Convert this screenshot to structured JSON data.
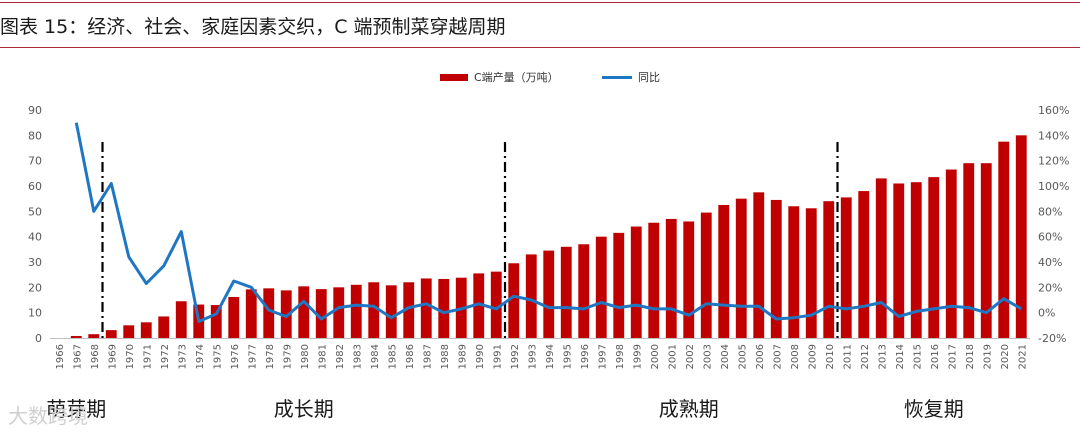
{
  "header": {
    "title": "图表 15：经济、社会、家庭因素交织，C 端预制菜穿越周期"
  },
  "watermark": "大数跨境",
  "colors": {
    "bar": "#c00000",
    "line": "#1f77c4",
    "divider": "#000000",
    "axis_text": "#595959",
    "title_rule": "#b0283a"
  },
  "chart_data": {
    "type": "bar",
    "categories": [
      "1966",
      "1967",
      "1968",
      "1969",
      "1970",
      "1971",
      "1972",
      "1973",
      "1974",
      "1975",
      "1976",
      "1977",
      "1978",
      "1979",
      "1980",
      "1981",
      "1982",
      "1983",
      "1984",
      "1985",
      "1986",
      "1987",
      "1988",
      "1989",
      "1990",
      "1991",
      "1992",
      "1993",
      "1994",
      "1995",
      "1996",
      "1997",
      "1998",
      "1999",
      "2000",
      "2001",
      "2002",
      "2003",
      "2004",
      "2005",
      "2006",
      "2007",
      "2008",
      "2009",
      "2010",
      "2011",
      "2012",
      "2013",
      "2014",
      "2015",
      "2016",
      "2017",
      "2018",
      "2019",
      "2020",
      "2021"
    ],
    "series": [
      {
        "name": "C端产量（万吨）",
        "type": "bar",
        "axis": "left",
        "values": [
          0,
          0.8,
          1.5,
          3.1,
          5,
          6.2,
          8.5,
          14.5,
          13.2,
          13,
          16.2,
          19.2,
          19.6,
          18.8,
          20.4,
          19.3,
          20,
          21,
          22,
          20.8,
          22,
          23.5,
          23.3,
          23.8,
          25.5,
          26.2,
          29.5,
          33,
          34.5,
          36,
          37,
          40,
          41.5,
          44,
          45.5,
          47,
          46,
          49.5,
          52.5,
          55,
          57.5,
          54.5,
          52,
          51.2,
          54,
          55.5,
          58,
          63,
          61,
          61.5,
          63.5,
          66.5,
          69,
          69,
          77.5,
          80
        ]
      },
      {
        "name": "同比",
        "type": "line",
        "axis": "right",
        "values": [
          null,
          150,
          80,
          102,
          44,
          23,
          37,
          64,
          -7,
          -1,
          25,
          20,
          2,
          -3,
          9,
          -5,
          4,
          6,
          5,
          -4,
          4,
          7,
          0,
          3,
          7,
          3,
          13,
          10,
          4,
          4,
          3,
          8,
          4,
          6,
          3,
          3,
          -2,
          7,
          6,
          5,
          5,
          -5,
          -4,
          -2,
          5,
          3,
          5,
          8,
          -3,
          1,
          3,
          5,
          4,
          0,
          11,
          3
        ]
      }
    ],
    "ylim": [
      0,
      90
    ],
    "y_ticks": [
      "0",
      "10",
      "20",
      "30",
      "40",
      "50",
      "60",
      "70",
      "80",
      "90"
    ],
    "y2lim": [
      -20,
      160
    ],
    "y2_ticks": [
      "-20%",
      "0%",
      "20%",
      "40%",
      "60%",
      "80%",
      "100%",
      "120%",
      "140%",
      "160%"
    ],
    "legend": [
      "C端产量（万吨）",
      "同比"
    ],
    "legend_position": "top-center",
    "grid": false,
    "divider_years": [
      "1968",
      "1991",
      "2010"
    ],
    "phases": [
      {
        "label": "萌芽期",
        "year": "1967"
      },
      {
        "label": "成长期",
        "year": "1980"
      },
      {
        "label": "成熟期",
        "year": "2002"
      },
      {
        "label": "恢复期",
        "year": "2016"
      }
    ]
  }
}
